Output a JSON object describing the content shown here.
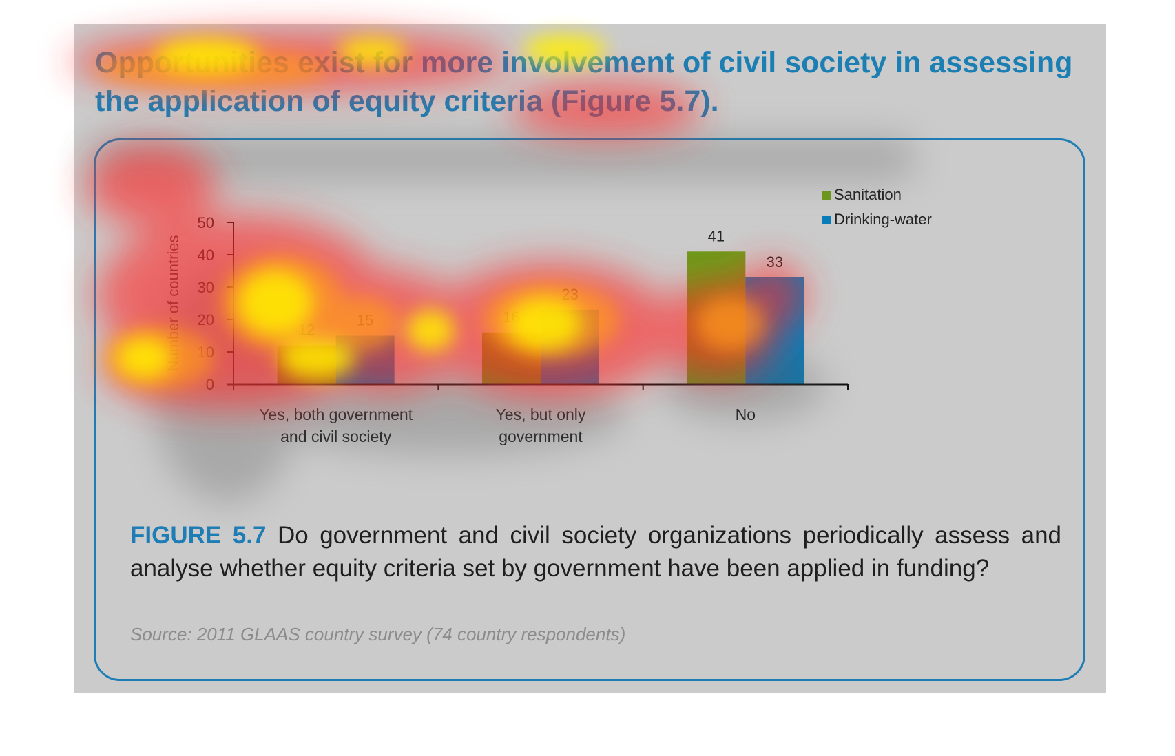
{
  "headline": "Opportunities exist for more involvement of civil society in assessing the application of equity criteria (Figure 5.7).",
  "caption": {
    "label": "FIGURE 5.7",
    "text": " Do government and civil society organizations periodically assess and analyse whether equity criteria set by government have been applied in funding?"
  },
  "source": "Source: 2011 GLAAS country survey (74 country respondents)",
  "colors": {
    "accent": "#1f7db5",
    "sanitation": "#6e9a1a",
    "drinking_water": "#0a7cb8",
    "background": "#cbcbcb"
  },
  "chart_data": {
    "type": "bar",
    "categories": [
      [
        "Yes, both government",
        "and civil society"
      ],
      [
        "Yes, but only",
        "government"
      ],
      [
        "No"
      ]
    ],
    "series": [
      {
        "name": "Sanitation",
        "values": [
          12,
          16,
          41
        ]
      },
      {
        "name": "Drinking-water",
        "values": [
          15,
          23,
          33
        ]
      }
    ],
    "title": "",
    "xlabel": "",
    "ylabel": "Number of countries",
    "ylim": [
      0,
      50
    ],
    "yticks": [
      0,
      10,
      20,
      30,
      40,
      50
    ],
    "legend_position": "top-right",
    "data_labels": true,
    "grid": false
  }
}
